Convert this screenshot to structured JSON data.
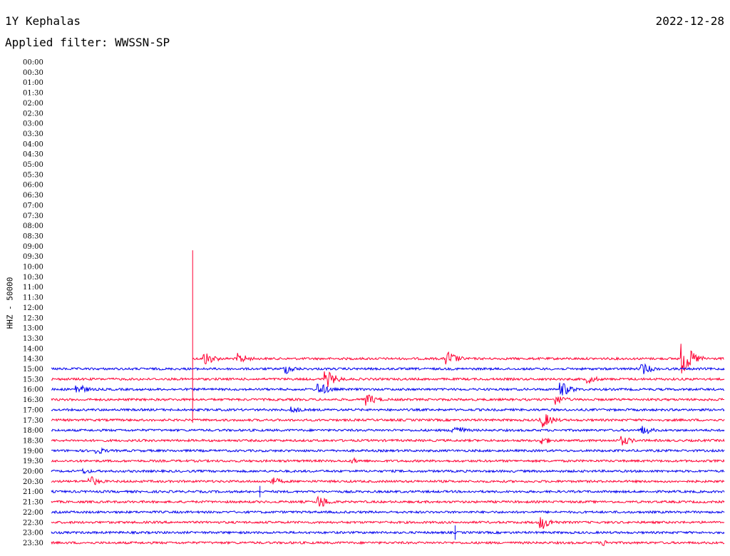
{
  "header": {
    "station": "1Y Kephalas",
    "date": "2022-12-28",
    "filter": "Applied filter: WWSSN-SP"
  },
  "channel_label": "HHZ - 50000",
  "colors": {
    "red": "#ff0033",
    "blue": "#0000ee"
  },
  "chart_data": {
    "type": "line",
    "title": "1Y Kephalas",
    "subtitle": "Applied filter: WWSSN-SP",
    "ylabel": "HHZ - 50000",
    "grid": false,
    "row_interval_minutes": 30,
    "time_labels": [
      "00:00",
      "00:30",
      "01:00",
      "01:30",
      "02:00",
      "02:30",
      "03:00",
      "03:30",
      "04:00",
      "04:30",
      "05:00",
      "05:30",
      "06:00",
      "06:30",
      "07:00",
      "07:30",
      "08:00",
      "08:30",
      "09:00",
      "09:30",
      "10:00",
      "10:30",
      "11:00",
      "11:30",
      "12:00",
      "12:30",
      "13:00",
      "13:30",
      "14:00",
      "14:30",
      "15:00",
      "15:30",
      "16:00",
      "16:30",
      "17:00",
      "17:30",
      "18:00",
      "18:30",
      "19:00",
      "19:30",
      "20:00",
      "20:30",
      "21:00",
      "21:30",
      "22:00",
      "22:30",
      "23:00",
      "23:30"
    ],
    "data_start_row": "14:30",
    "data_start_fraction": 0.21,
    "row_colors_cycle": [
      "red",
      "blue"
    ],
    "events": [
      {
        "row": "14:30",
        "at": 0.21,
        "amp": 152,
        "kind": "spike"
      },
      {
        "row": "14:30",
        "at": 0.23,
        "amp": 10
      },
      {
        "row": "14:30",
        "at": 0.28,
        "amp": 8
      },
      {
        "row": "14:30",
        "at": 0.59,
        "amp": 11
      },
      {
        "row": "14:30",
        "at": 0.94,
        "amp": 22
      },
      {
        "row": "15:00",
        "at": 0.35,
        "amp": 7
      },
      {
        "row": "15:00",
        "at": 0.88,
        "amp": 8
      },
      {
        "row": "15:30",
        "at": 0.41,
        "amp": 12
      },
      {
        "row": "15:30",
        "at": 0.8,
        "amp": 6
      },
      {
        "row": "16:00",
        "at": 0.04,
        "amp": 8
      },
      {
        "row": "16:00",
        "at": 0.4,
        "amp": 9
      },
      {
        "row": "16:00",
        "at": 0.76,
        "amp": 10
      },
      {
        "row": "16:30",
        "at": 0.47,
        "amp": 9
      },
      {
        "row": "16:30",
        "at": 0.75,
        "amp": 8
      },
      {
        "row": "17:00",
        "at": 0.36,
        "amp": 5
      },
      {
        "row": "17:30",
        "at": 0.73,
        "amp": 12
      },
      {
        "row": "18:00",
        "at": 0.6,
        "amp": 8
      },
      {
        "row": "18:00",
        "at": 0.88,
        "amp": 7
      },
      {
        "row": "18:30",
        "at": 0.73,
        "amp": 6
      },
      {
        "row": "18:30",
        "at": 0.85,
        "amp": 7
      },
      {
        "row": "19:00",
        "at": 0.07,
        "amp": 5
      },
      {
        "row": "19:30",
        "at": 0.45,
        "amp": 4
      },
      {
        "row": "20:00",
        "at": 0.05,
        "amp": 4
      },
      {
        "row": "20:30",
        "at": 0.06,
        "amp": 7
      },
      {
        "row": "20:30",
        "at": 0.33,
        "amp": 6
      },
      {
        "row": "21:00",
        "at": 0.31,
        "amp": 8,
        "kind": "spike"
      },
      {
        "row": "21:30",
        "at": 0.4,
        "amp": 9
      },
      {
        "row": "22:30",
        "at": 0.73,
        "amp": 10
      },
      {
        "row": "23:00",
        "at": 0.6,
        "amp": 10,
        "kind": "spike"
      },
      {
        "row": "23:30",
        "at": 0.82,
        "amp": 5
      }
    ]
  }
}
